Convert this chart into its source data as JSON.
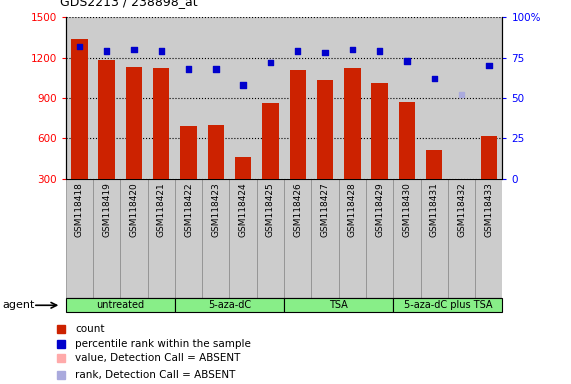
{
  "title": "GDS2213 / 238898_at",
  "samples": [
    "GSM118418",
    "GSM118419",
    "GSM118420",
    "GSM118421",
    "GSM118422",
    "GSM118423",
    "GSM118424",
    "GSM118425",
    "GSM118426",
    "GSM118427",
    "GSM118428",
    "GSM118429",
    "GSM118430",
    "GSM118431",
    "GSM118432",
    "GSM118433"
  ],
  "counts": [
    1340,
    1185,
    1130,
    1120,
    690,
    700,
    460,
    860,
    1110,
    1030,
    1120,
    1010,
    870,
    510,
    270,
    615
  ],
  "counts_absent": [
    false,
    false,
    false,
    false,
    false,
    false,
    false,
    false,
    false,
    false,
    false,
    false,
    false,
    false,
    true,
    false
  ],
  "percentile_ranks": [
    82,
    79,
    80,
    79,
    68,
    68,
    58,
    72,
    79,
    78,
    80,
    79,
    73,
    62,
    52,
    70
  ],
  "ranks_absent": [
    false,
    false,
    false,
    false,
    false,
    false,
    false,
    false,
    false,
    false,
    false,
    false,
    false,
    false,
    true,
    false
  ],
  "ylim_left": [
    300,
    1500
  ],
  "ylim_right": [
    0,
    100
  ],
  "yticks_left": [
    300,
    600,
    900,
    1200,
    1500
  ],
  "yticks_right": [
    0,
    25,
    50,
    75,
    100
  ],
  "groups": [
    {
      "label": "untreated",
      "start": 0,
      "end": 3
    },
    {
      "label": "5-aza-dC",
      "start": 4,
      "end": 7
    },
    {
      "label": "TSA",
      "start": 8,
      "end": 11
    },
    {
      "label": "5-aza-dC plus TSA",
      "start": 12,
      "end": 15
    }
  ],
  "bar_color": "#cc2200",
  "bar_absent_color": "#ffaaaa",
  "rank_color": "#0000cc",
  "rank_absent_color": "#aaaadd",
  "bar_width": 0.6,
  "bg_color": "#cccccc",
  "group_color": "#88ee88",
  "xlabel_bg": "#cccccc"
}
